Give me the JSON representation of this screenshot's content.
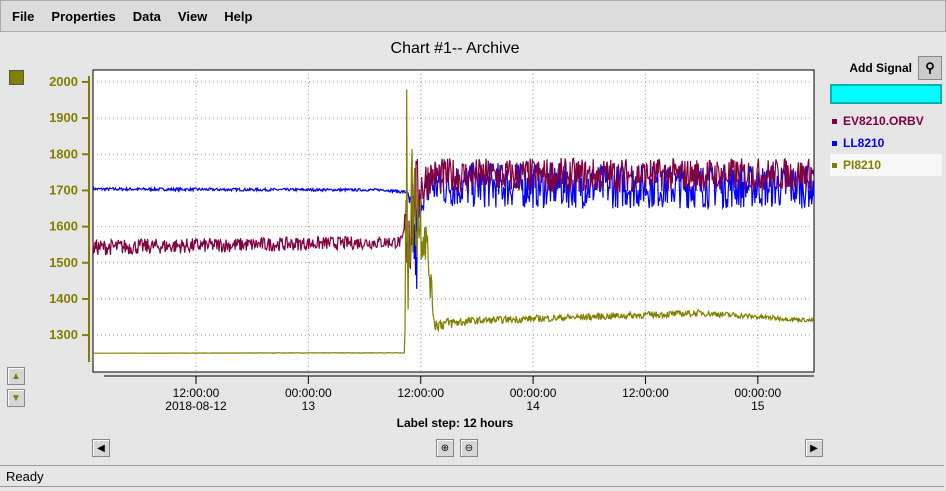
{
  "menu": [
    "File",
    "Properties",
    "Data",
    "View",
    "Help"
  ],
  "title": "Chart #1-- Archive",
  "side": {
    "add_signal_label": "Add Signal",
    "signal_input_value": "",
    "find_icon": "binoculars-icon"
  },
  "legend": [
    {
      "name": "EV8210.ORBV",
      "color": "#800040"
    },
    {
      "name": "LL8210",
      "color": "#0000ff"
    },
    {
      "name": "PI8210",
      "color": "#808000"
    }
  ],
  "status": "Ready",
  "chart_data": {
    "type": "line",
    "title": "Chart #1-- Archive",
    "xlabel": "Label step: 12 hours",
    "x_range": [
      "2018-08-12 01:00",
      "2018-08-15 06:00"
    ],
    "y_range": [
      1198,
      2033
    ],
    "grid": true,
    "legend_placement": "right",
    "y_axis_color": "#808000",
    "y_ticks": [
      1300,
      1400,
      1500,
      1600,
      1700,
      1800,
      1900,
      2000
    ],
    "x_ticks": [
      {
        "t": "2018-08-12 12:00",
        "line1": "12:00:00",
        "line2": "2018-08-12"
      },
      {
        "t": "2018-08-13 00:00",
        "line1": "00:00:00",
        "line2": "13"
      },
      {
        "t": "2018-08-13 12:00",
        "line1": "12:00:00",
        "line2": ""
      },
      {
        "t": "2018-08-14 00:00",
        "line1": "00:00:00",
        "line2": "14"
      },
      {
        "t": "2018-08-14 12:00",
        "line1": "12:00:00",
        "line2": ""
      },
      {
        "t": "2018-08-15 00:00",
        "line1": "00:00:00",
        "line2": "15"
      }
    ],
    "series": [
      {
        "name": "LL8210",
        "color": "#0000ff",
        "bands": [
          [
            "2018-08-12 01:00",
            1700,
            1708
          ],
          [
            "2018-08-12 20:00",
            1698,
            1706
          ],
          [
            "2018-08-13 08:00",
            1698,
            1705
          ],
          [
            "2018-08-13 10:30",
            1690,
            1700
          ],
          [
            "2018-08-13 11:00",
            1600,
            1690
          ],
          [
            "2018-08-13 11:30",
            1330,
            1690
          ],
          [
            "2018-08-13 12:00",
            1640,
            1700
          ],
          [
            "2018-08-13 13:00",
            1650,
            1780
          ],
          [
            "2018-08-15 06:00",
            1650,
            1770
          ]
        ]
      },
      {
        "name": "EV8210.ORBV",
        "color": "#800040",
        "bands": [
          [
            "2018-08-12 01:00",
            1520,
            1565
          ],
          [
            "2018-08-13 10:00",
            1540,
            1575
          ],
          [
            "2018-08-13 10:45",
            1420,
            1800
          ],
          [
            "2018-08-13 11:30",
            1600,
            1790
          ],
          [
            "2018-08-13 13:00",
            1690,
            1790
          ],
          [
            "2018-08-15 06:00",
            1700,
            1790
          ]
        ]
      },
      {
        "name": "PI8210",
        "color": "#808000",
        "bands": [
          [
            "2018-08-12 01:00",
            1250,
            1250
          ],
          [
            "2018-08-13 10:15",
            1250,
            1252
          ],
          [
            "2018-08-13 10:30",
            1250,
            2000
          ],
          [
            "2018-08-13 11:00",
            1500,
            1860
          ],
          [
            "2018-08-13 12:30",
            1500,
            1660
          ],
          [
            "2018-08-13 13:30",
            1310,
            1350
          ],
          [
            "2018-08-13 18:00",
            1330,
            1350
          ],
          [
            "2018-08-14 18:00",
            1352,
            1370
          ],
          [
            "2018-08-15 06:00",
            1335,
            1345
          ]
        ]
      }
    ]
  }
}
